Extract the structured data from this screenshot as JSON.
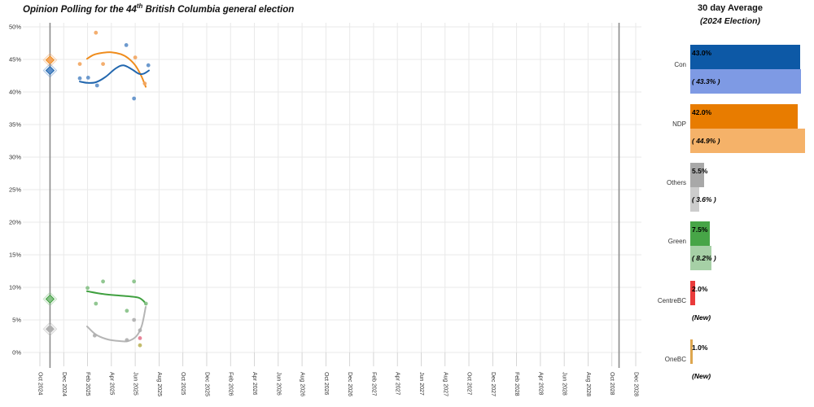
{
  "title": {
    "prefix": "Opinion Polling for the 44",
    "superscript": "th",
    "suffix": " British Columbia general election"
  },
  "legend": {
    "title": "30 day Average",
    "subtitle": "(2024 Election)"
  },
  "parties": [
    {
      "name": "Con",
      "avg_label": "43.0%",
      "avg": 43.0,
      "paren_label": "( 43.3% )",
      "paren": 43.3,
      "bar_color": "#0d59a6",
      "light_color": "#7e9ae4"
    },
    {
      "name": "NDP",
      "avg_label": "42.0%",
      "avg": 42.0,
      "paren_label": "( 44.9% )",
      "paren": 44.9,
      "bar_color": "#e87c00",
      "light_color": "#f5b269"
    },
    {
      "name": "Others",
      "avg_label": "5.5%",
      "avg": 5.5,
      "paren_label": "( 3.6% )",
      "paren": 3.6,
      "bar_color": "#a8a8a8",
      "light_color": "#cccccc"
    },
    {
      "name": "Green",
      "avg_label": "7.5%",
      "avg": 7.5,
      "paren_label": "( 8.2% )",
      "paren": 8.2,
      "bar_color": "#47a547",
      "light_color": "#a6d0a6"
    },
    {
      "name": "CentreBC",
      "avg_label": "2.0%",
      "avg": 2.0,
      "paren_label": "(New)",
      "paren": null,
      "bar_color": "#ea3b3b",
      "light_color": null
    },
    {
      "name": "OneBC",
      "avg_label": "1.0%",
      "avg": 1.0,
      "paren_label": "(New)",
      "paren": null,
      "bar_color": "#dda64f",
      "light_color": null
    }
  ],
  "chart_data": {
    "type": "scatter",
    "title": "Opinion Polling for the 44th British Columbia general election",
    "xlabel": "",
    "ylabel": "",
    "x_unit": "months after Oct 2024, 2 months per tick",
    "x_ticks": [
      "Oct 2024",
      "Dec 2024",
      "Feb 2025",
      "Apr 2025",
      "Jun 2025",
      "Aug 2025",
      "Oct 2025",
      "Dec 2025",
      "Feb 2026",
      "Apr 2026",
      "Jun 2026",
      "Aug 2026",
      "Oct 2026",
      "Dec 2026",
      "Feb 2027",
      "Apr 2027",
      "Jun 2027",
      "Aug 2027",
      "Oct 2027",
      "Dec 2027",
      "Feb 2028",
      "Apr 2028",
      "Jun 2028",
      "Aug 2028",
      "Oct 2028",
      "Dec 2028"
    ],
    "y_ticks": [
      "0%",
      "5%",
      "10%",
      "15%",
      "20%",
      "25%",
      "30%",
      "35%",
      "40%",
      "45%",
      "50%"
    ],
    "y_range": [
      0,
      50
    ],
    "grid": true,
    "election_lines": [
      {
        "name": "2024-election-day",
        "m": 0.85
      },
      {
        "name": "2028-election-day",
        "m": 48.6
      }
    ],
    "series": [
      {
        "name": "NDP",
        "line_color": "#ef8c1c",
        "point_color": "#f2a55f",
        "election_result": 44.9,
        "points": [
          [
            3.35,
            44.3
          ],
          [
            4.7,
            49.1
          ],
          [
            5.3,
            44.3
          ],
          [
            8.0,
            45.3
          ],
          [
            8.8,
            41.3
          ]
        ],
        "trend": [
          [
            3.96,
            45.1
          ],
          [
            4.5,
            45.7
          ],
          [
            5.2,
            46.0
          ],
          [
            6.0,
            46.1
          ],
          [
            6.8,
            45.8
          ],
          [
            7.4,
            45.2
          ],
          [
            8.0,
            44.1
          ],
          [
            8.5,
            42.5
          ],
          [
            8.88,
            40.8
          ]
        ]
      },
      {
        "name": "Con",
        "line_color": "#2267ae",
        "point_color": "#5d8fc9",
        "election_result": 43.3,
        "points": [
          [
            3.35,
            42.1
          ],
          [
            4.05,
            42.2
          ],
          [
            4.8,
            41.0
          ],
          [
            7.25,
            47.2
          ],
          [
            7.9,
            39.0
          ],
          [
            9.1,
            44.1
          ]
        ],
        "trend": [
          [
            3.35,
            41.6
          ],
          [
            4.0,
            41.4
          ],
          [
            4.7,
            41.5
          ],
          [
            5.5,
            42.3
          ],
          [
            6.35,
            43.6
          ],
          [
            7.0,
            44.1
          ],
          [
            7.7,
            43.5
          ],
          [
            8.3,
            42.8
          ],
          [
            8.7,
            42.8
          ],
          [
            9.15,
            43.3
          ]
        ]
      },
      {
        "name": "Green",
        "line_color": "#3fa03f",
        "point_color": "#86c186",
        "election_result": 8.2,
        "points": [
          [
            4.0,
            9.9
          ],
          [
            5.3,
            10.9
          ],
          [
            7.9,
            10.9
          ],
          [
            4.7,
            7.5
          ],
          [
            7.3,
            6.4
          ],
          [
            8.9,
            7.5
          ]
        ],
        "trend": [
          [
            3.96,
            9.4
          ],
          [
            5.2,
            9.0
          ],
          [
            6.6,
            8.75
          ],
          [
            7.6,
            8.6
          ],
          [
            8.3,
            8.4
          ],
          [
            8.7,
            7.9
          ],
          [
            8.88,
            7.4
          ]
        ]
      },
      {
        "name": "Others",
        "line_color": "#b5b5b5",
        "point_color": "#aeaeae",
        "election_result": 3.6,
        "points": [
          [
            4.6,
            2.6
          ],
          [
            7.3,
            1.9
          ],
          [
            7.9,
            5.0
          ],
          [
            8.4,
            3.4
          ]
        ],
        "trend": [
          [
            3.96,
            4.0
          ],
          [
            4.7,
            2.75
          ],
          [
            5.7,
            2.0
          ],
          [
            6.7,
            1.75
          ],
          [
            7.4,
            1.75
          ],
          [
            8.1,
            2.5
          ],
          [
            8.55,
            4.1
          ],
          [
            8.88,
            7.0
          ]
        ]
      },
      {
        "name": "CentreBC",
        "line_color": null,
        "point_color": "#e5788f",
        "points": [
          [
            8.4,
            2.2
          ]
        ]
      },
      {
        "name": "OneBC",
        "line_color": null,
        "point_color": "#bdb45c",
        "points": [
          [
            8.4,
            1.1
          ]
        ]
      }
    ],
    "legend_position": "right",
    "colors": {
      "grid": "#e9e9e9",
      "tick": "#cccccc",
      "axis_text": "#333333",
      "election_line": "#8c8c8c"
    }
  }
}
